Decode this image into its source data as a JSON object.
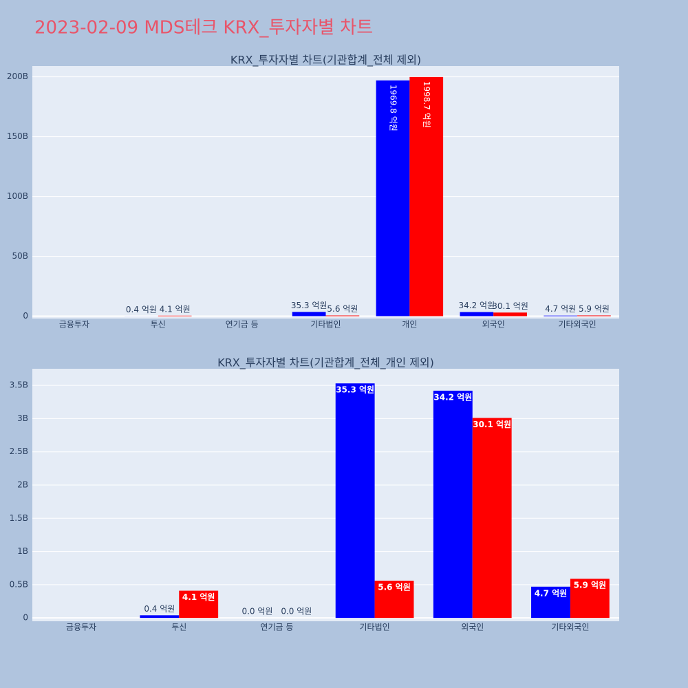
{
  "title": "2023-02-09 MDS테크 KRX_투자자별 차트",
  "chart_data": [
    {
      "type": "bar",
      "title": "KRX_투자자별 차트(기관합계_전체 제외)",
      "categories": [
        "금융투자",
        "투신",
        "연기금 등",
        "기타법인",
        "개인",
        "외국인",
        "기타외국인"
      ],
      "series": [
        {
          "color": "#0000ff",
          "values": [
            null,
            0.04,
            null,
            3.53,
            196.98,
            3.42,
            0.47
          ],
          "value_labels": [
            null,
            "0.4 억원",
            null,
            "35.3 억원",
            "1969.8 억원",
            "34.2 억원",
            "4.7 억원"
          ]
        },
        {
          "color": "#ff0000",
          "values": [
            null,
            0.41,
            null,
            0.56,
            199.87,
            3.01,
            0.59
          ],
          "value_labels": [
            null,
            "4.1 억원",
            null,
            "5.6 억원",
            "1998.7 억원",
            "30.1 억원",
            "5.9 억원"
          ]
        }
      ],
      "ylim": [
        -2,
        209
      ],
      "yticks": [
        0,
        {
          "value": 50,
          "label": "50B"
        },
        {
          "value": 100,
          "label": "100B"
        },
        {
          "value": 150,
          "label": "150B"
        },
        {
          "value": 200,
          "label": "200B"
        }
      ],
      "grid": true
    },
    {
      "type": "bar",
      "title": "KRX_투자자별 차트(기관합계_전체_개인 제외)",
      "categories": [
        "금융투자",
        "투신",
        "연기금 등",
        "기타법인",
        "외국인",
        "기타외국인"
      ],
      "series": [
        {
          "color": "#0000ff",
          "values": [
            null,
            0.04,
            0,
            3.53,
            3.42,
            0.47
          ],
          "value_labels": [
            null,
            "0.4 억원",
            "0.0 억원",
            "35.3 억원",
            "34.2 억원",
            "4.7 억원"
          ]
        },
        {
          "color": "#ff0000",
          "values": [
            null,
            0.41,
            0,
            0.56,
            3.01,
            0.59
          ],
          "value_labels": [
            null,
            "4.1 억원",
            "0.0 억원",
            "5.6 억원",
            "30.1 억원",
            "5.9 억원"
          ]
        }
      ],
      "ylim": [
        -0.05,
        3.75
      ],
      "yticks": [
        0,
        {
          "value": 0.5,
          "label": "0.5B"
        },
        {
          "value": 1,
          "label": "1B"
        },
        {
          "value": 1.5,
          "label": "1.5B"
        },
        {
          "value": 2,
          "label": "2B"
        },
        {
          "value": 2.5,
          "label": "2.5B"
        },
        {
          "value": 3,
          "label": "3B"
        },
        {
          "value": 3.5,
          "label": "3.5B"
        }
      ],
      "grid": true
    }
  ]
}
